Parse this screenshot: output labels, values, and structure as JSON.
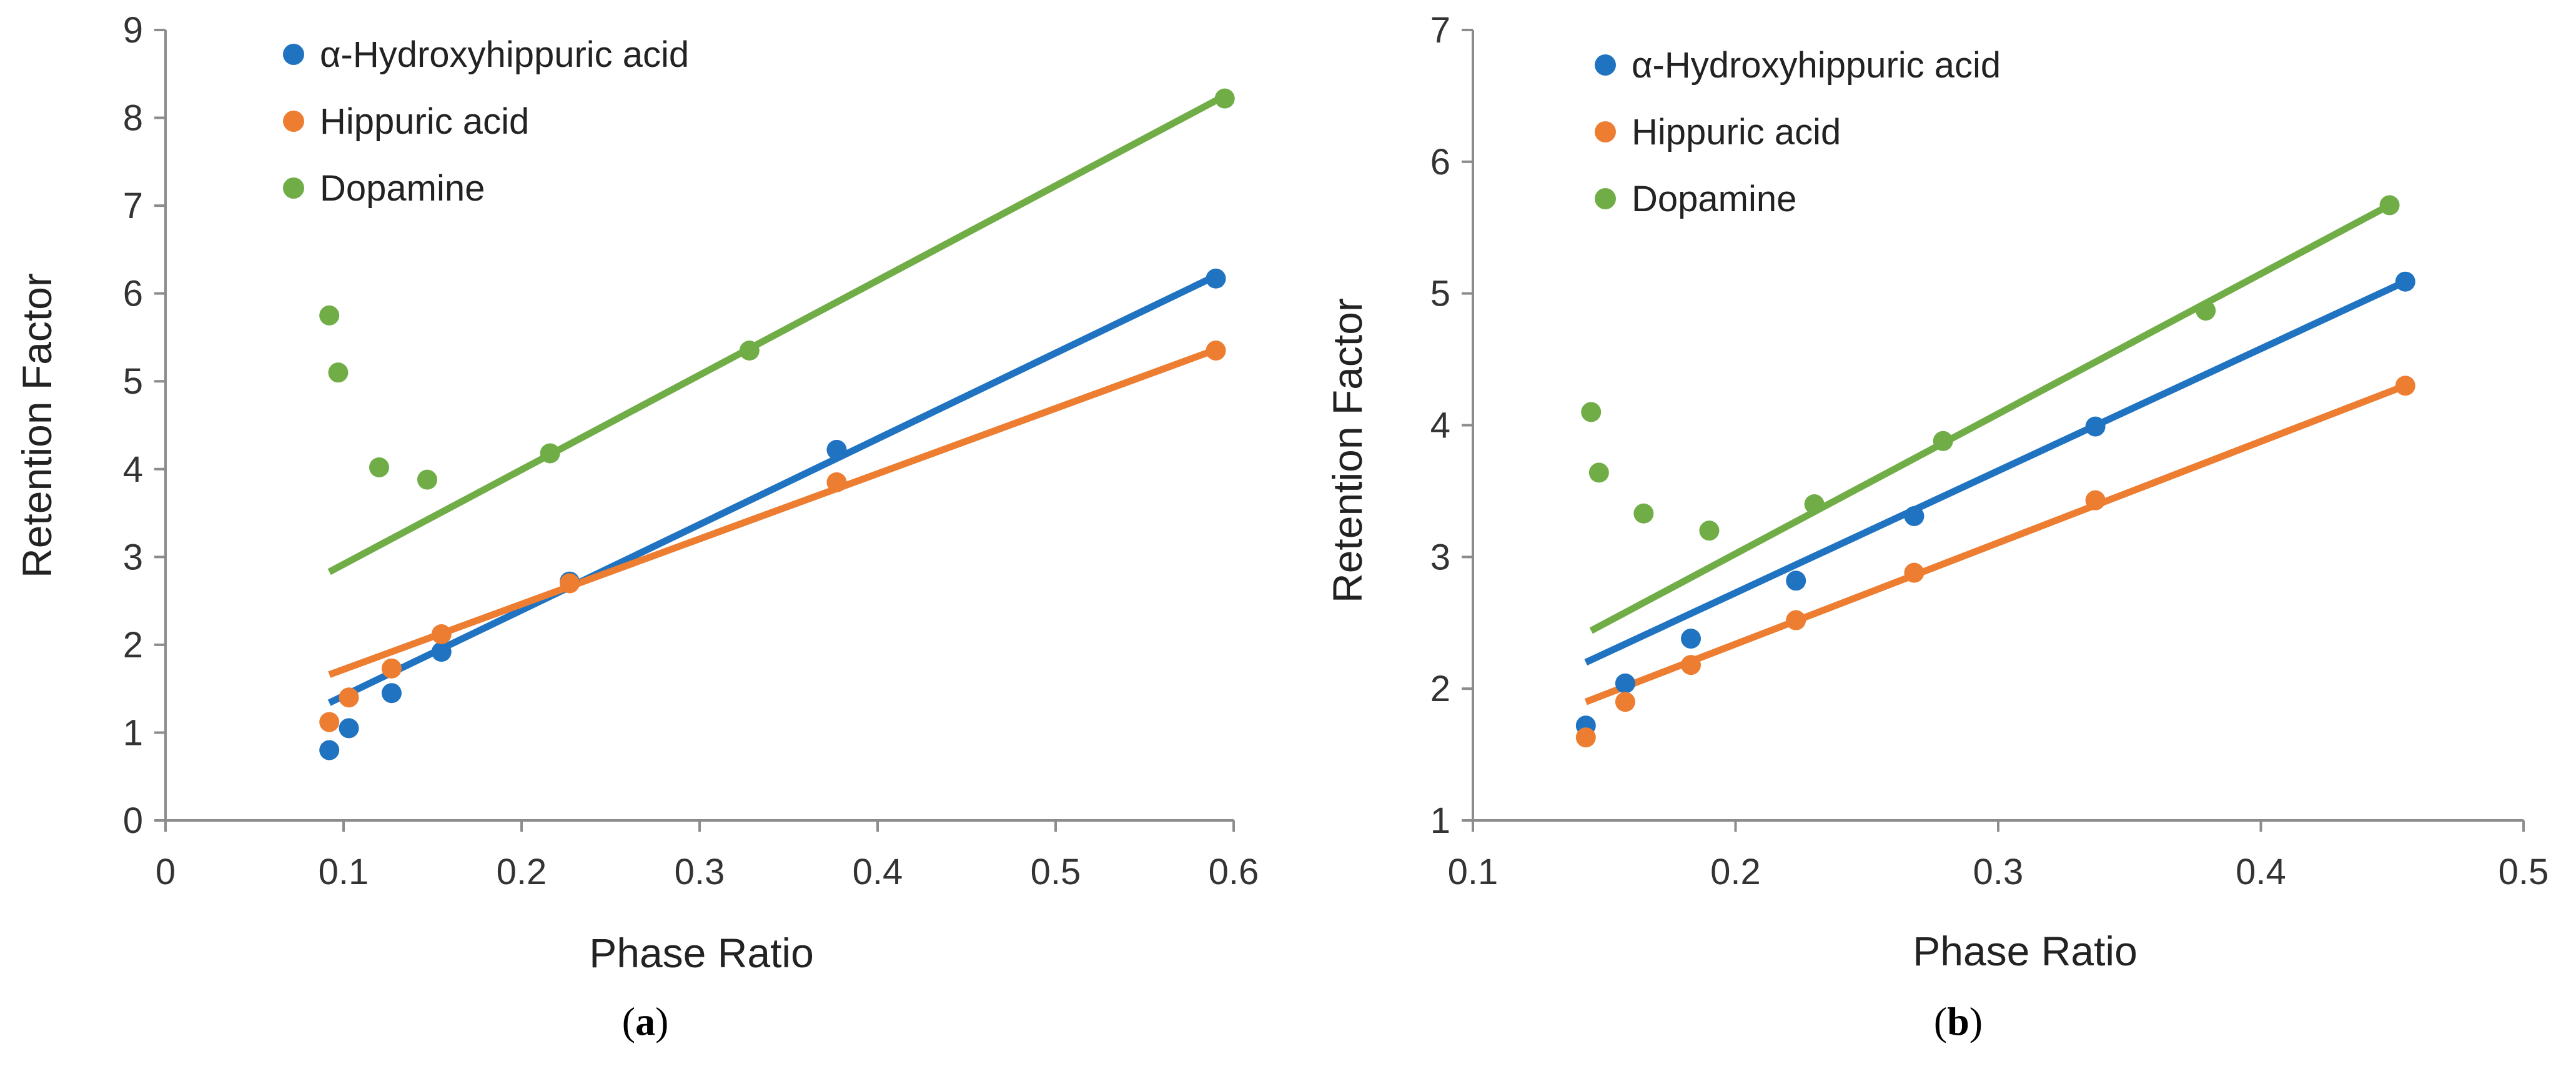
{
  "colors": {
    "blue": "#1f73c0",
    "orange": "#ed7d31",
    "green": "#70ad47",
    "axis": "#8c8c8c"
  },
  "chart_data": [
    {
      "type": "scatter",
      "panel": "a",
      "caption": "(a)",
      "caption_letter": "a",
      "xlabel": "Phase Ratio",
      "ylabel": "Retention Factor",
      "xlim": [
        0,
        0.6
      ],
      "ylim": [
        0,
        9
      ],
      "xticks": [
        0,
        0.1,
        0.2,
        0.3,
        0.4,
        0.5,
        0.6
      ],
      "yticks": [
        0,
        1,
        2,
        3,
        4,
        5,
        6,
        7,
        8,
        9
      ],
      "xtick_labels": [
        "0",
        "0.1",
        "0.2",
        "0.3",
        "0.4",
        "0.5",
        "0.6"
      ],
      "ytick_labels": [
        "0",
        "1",
        "2",
        "3",
        "4",
        "5",
        "6",
        "7",
        "8",
        "9"
      ],
      "legend_position": "top-left",
      "series": [
        {
          "name": "α-Hydroxyhippuric acid",
          "color": "#1f73c0",
          "x": [
            0.092,
            0.103,
            0.127,
            0.155,
            0.227,
            0.377,
            0.59
          ],
          "y": [
            0.8,
            1.05,
            1.45,
            1.92,
            2.72,
            4.22,
            6.17
          ],
          "fit": [
            [
              0.092,
              1.34
            ],
            [
              0.59,
              6.2
            ]
          ]
        },
        {
          "name": "Hippuric acid",
          "color": "#ed7d31",
          "x": [
            0.092,
            0.103,
            0.127,
            0.155,
            0.227,
            0.377,
            0.59
          ],
          "y": [
            1.12,
            1.4,
            1.73,
            2.12,
            2.7,
            3.85,
            5.35
          ],
          "fit": [
            [
              0.092,
              1.66
            ],
            [
              0.59,
              5.36
            ]
          ]
        },
        {
          "name": "Dopamine",
          "color": "#70ad47",
          "x": [
            0.092,
            0.097,
            0.12,
            0.147,
            0.216,
            0.328,
            0.595
          ],
          "y": [
            5.75,
            5.1,
            4.02,
            3.88,
            4.18,
            5.35,
            8.22
          ],
          "fit": [
            [
              0.092,
              2.83
            ],
            [
              0.595,
              8.25
            ]
          ]
        }
      ]
    },
    {
      "type": "scatter",
      "panel": "b",
      "caption": "(b)",
      "caption_letter": "b",
      "xlabel": "Phase Ratio",
      "ylabel": "Retention Factor",
      "xlim": [
        0.1,
        0.5
      ],
      "ylim": [
        1,
        7
      ],
      "xticks": [
        0.1,
        0.2,
        0.3,
        0.4,
        0.5
      ],
      "yticks": [
        1,
        2,
        3,
        4,
        5,
        6,
        7
      ],
      "xtick_labels": [
        "0.1",
        "0.2",
        "0.3",
        "0.4",
        "0.5"
      ],
      "ytick_labels": [
        "1",
        "2",
        "3",
        "4",
        "5",
        "6",
        "7"
      ],
      "legend_position": "top-left",
      "series": [
        {
          "name": "α-Hydroxyhippuric acid",
          "color": "#1f73c0",
          "x": [
            0.143,
            0.158,
            0.183,
            0.223,
            0.268,
            0.337,
            0.455
          ],
          "y": [
            1.72,
            2.04,
            2.38,
            2.82,
            3.31,
            3.99,
            5.09
          ],
          "fit": [
            [
              0.143,
              2.2
            ],
            [
              0.455,
              5.09
            ]
          ]
        },
        {
          "name": "Hippuric acid",
          "color": "#ed7d31",
          "x": [
            0.143,
            0.158,
            0.183,
            0.223,
            0.268,
            0.337,
            0.455
          ],
          "y": [
            1.63,
            1.9,
            2.18,
            2.52,
            2.88,
            3.43,
            4.3
          ],
          "fit": [
            [
              0.143,
              1.9
            ],
            [
              0.455,
              4.3
            ]
          ]
        },
        {
          "name": "Dopamine",
          "color": "#70ad47",
          "x": [
            0.145,
            0.148,
            0.165,
            0.19,
            0.23,
            0.279,
            0.379,
            0.449
          ],
          "y": [
            4.1,
            3.64,
            3.33,
            3.2,
            3.4,
            3.88,
            4.87,
            5.67
          ],
          "fit": [
            [
              0.145,
              2.44
            ],
            [
              0.449,
              5.67
            ]
          ]
        }
      ]
    }
  ]
}
